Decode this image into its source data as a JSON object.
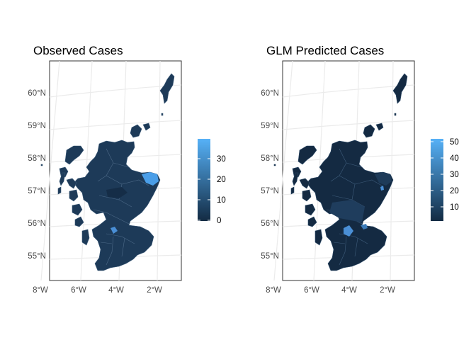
{
  "panels": [
    {
      "title": "Observed Cases",
      "lat_labels": [
        "60°N",
        "59°N",
        "58°N",
        "57°N",
        "56°N",
        "55°N"
      ],
      "lon_labels": [
        "8°W",
        "6°W",
        "4°W",
        "2°W"
      ],
      "legend": {
        "ticks": [
          "30",
          "20",
          "10",
          "0"
        ],
        "color_low": "#132b43",
        "color_high": "#56b1f7"
      },
      "highlight_color": "#4a9ee8"
    },
    {
      "title": "GLM Predicted Cases",
      "lat_labels": [
        "60°N",
        "59°N",
        "58°N",
        "57°N",
        "56°N",
        "55°N"
      ],
      "lon_labels": [
        "8°W",
        "6°W",
        "4°W",
        "2°W"
      ],
      "legend": {
        "ticks": [
          "50",
          "40",
          "30",
          "20",
          "10"
        ],
        "color_low": "#132b43",
        "color_high": "#56b1f7"
      },
      "highlight_color": "#4a8fd6"
    }
  ]
}
